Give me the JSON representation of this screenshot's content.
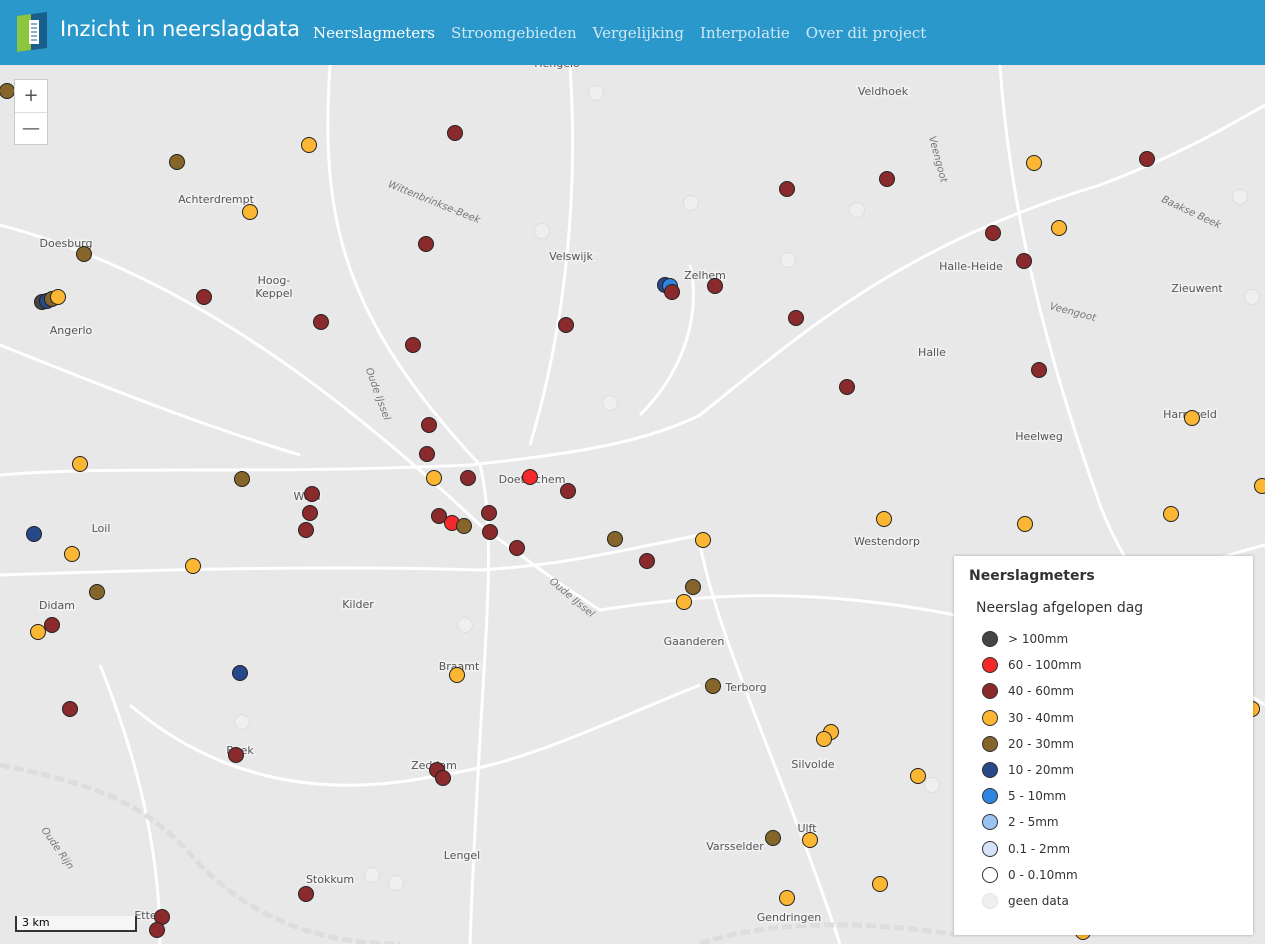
{
  "header": {
    "title": "Inzicht in neerslagdata",
    "nav": [
      "Neerslagmeters",
      "Stroomgebieden",
      "Vergelijking",
      "Interpolatie",
      "Over dit project"
    ]
  },
  "map": {
    "zoom_in": "+",
    "zoom_out": "—",
    "scale": "3 km",
    "places": [
      "Hengelo",
      "Veldhoek",
      "Achterdrempt",
      "Doesburg",
      "Velswijk",
      "Zelhem",
      "Halle-Heide",
      "Zieuwent",
      "Hoog-",
      "Keppel",
      "Angerlo",
      "Halle",
      "Harreveld",
      "Heelweg",
      "Doetinchem",
      "Wehl",
      "Loil",
      "Westendorp",
      "Kilder",
      "Didam",
      "Gaanderen",
      "Braamt",
      "Terborg",
      "Beek",
      "Silvolde",
      "Zeddam",
      "Ulft",
      "Varsselder",
      "Lengel",
      "Stokkum",
      "Gendringen",
      "Etten"
    ],
    "waters": [
      "Wittenbrinkse-Beek",
      "Oude IJssel",
      "Veengoot",
      "Veengoot",
      "Baakse Beek",
      "Oude IJssel",
      "Oude Rijn"
    ]
  },
  "legend": {
    "title": "Neerslagmeters",
    "subtitle": "Neerslag afgelopen dag",
    "items": [
      {
        "label": "> 100mm",
        "color": "#454545"
      },
      {
        "label": "60 - 100mm",
        "color": "#f42a2a"
      },
      {
        "label": "40 - 60mm",
        "color": "#8a2a2c"
      },
      {
        "label": "30 - 40mm",
        "color": "#fbb634"
      },
      {
        "label": "20 - 30mm",
        "color": "#86652b"
      },
      {
        "label": "10 - 20mm",
        "color": "#27498a"
      },
      {
        "label": "5 - 10mm",
        "color": "#2f86e2"
      },
      {
        "label": "2 - 5mm",
        "color": "#9ac3f2"
      },
      {
        "label": "0.1 - 2mm",
        "color": "#d5e2f8"
      },
      {
        "label": "0 - 0.10mm",
        "color": "#ffffff"
      },
      {
        "label": "geen data",
        "color": "#efefef"
      }
    ]
  }
}
